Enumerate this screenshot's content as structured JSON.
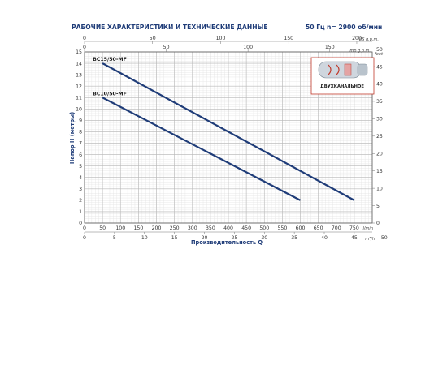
{
  "header": {
    "title": "РАБОЧИЕ ХАРАКТЕРИСТИКИ И ТЕХНИЧЕСКИЕ ДАННЫЕ",
    "frequency": "50 Гц",
    "speed": "n= 2900 об/мин"
  },
  "inset": {
    "label": "ДВУХКАНАЛЬНОЕ",
    "icon": "pump-impeller-icon",
    "accent": "#c0392b"
  },
  "chart_data": {
    "type": "line",
    "title": "",
    "xlabel": "Производительность Q",
    "ylabel": "Напор H (метры)",
    "x_unit": "l/min",
    "xlim": [
      0,
      800
    ],
    "ylim": [
      0,
      15
    ],
    "x_ticks": [
      0,
      50,
      100,
      150,
      200,
      250,
      300,
      350,
      400,
      450,
      500,
      550,
      600,
      650,
      700,
      750
    ],
    "y_ticks": [
      0,
      1,
      2,
      3,
      4,
      5,
      6,
      7,
      8,
      9,
      10,
      11,
      12,
      13,
      14,
      15
    ],
    "grid": true,
    "line_color": "#1f3c78",
    "secondary_axes": {
      "top_us": {
        "unit": "US g.p.m.",
        "ticks": [
          0,
          50,
          100,
          150,
          200
        ]
      },
      "top_imp": {
        "unit": "Imp g.p.m.",
        "ticks": [
          0,
          50,
          100,
          150
        ]
      },
      "bottom_m3h": {
        "unit": "m³/h",
        "ticks": [
          0,
          5,
          10,
          15,
          20,
          25,
          30,
          35,
          40,
          45,
          50
        ]
      },
      "right_feet": {
        "unit": "feet",
        "ticks": [
          0,
          5,
          10,
          15,
          20,
          25,
          30,
          35,
          40,
          45,
          50
        ]
      }
    },
    "series": [
      {
        "name": "BC15/50-MF",
        "x": [
          50,
          750
        ],
        "y": [
          14,
          2
        ]
      },
      {
        "name": "BC10/50-MF",
        "x": [
          50,
          600
        ],
        "y": [
          11,
          2
        ]
      }
    ]
  }
}
